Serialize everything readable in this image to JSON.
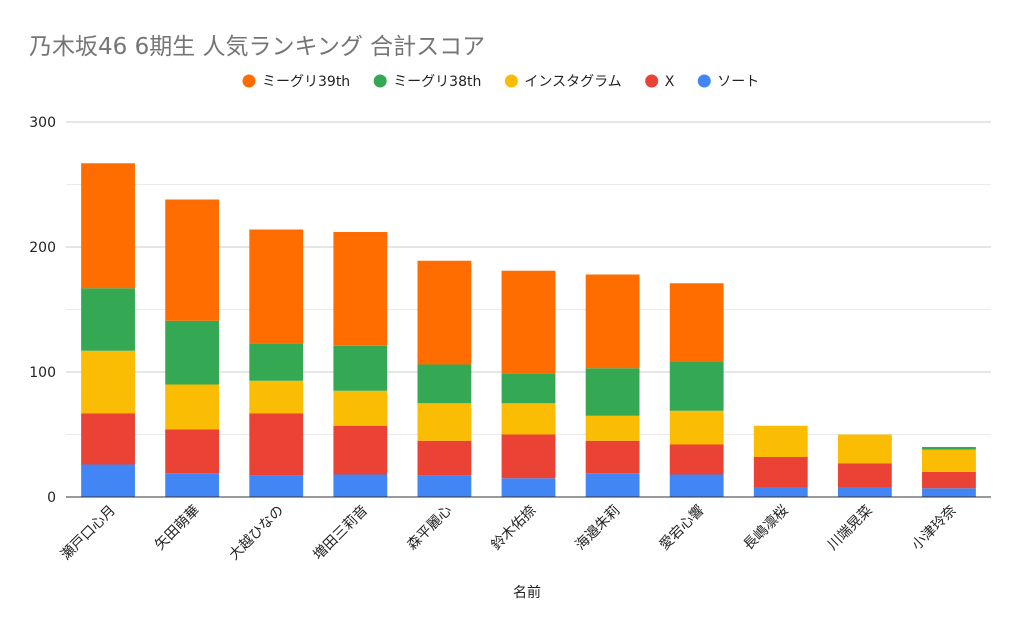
{
  "chart_data": {
    "type": "bar",
    "stacked": true,
    "title": "乃木坂46 6期生 人気ランキング 合計スコア",
    "xlabel": "名前",
    "ylabel": "",
    "ylim": [
      0,
      300
    ],
    "yticks": [
      0,
      100,
      200,
      300
    ],
    "grid": true,
    "legend_position": "top",
    "categories": [
      "瀬戸口心月",
      "矢田萌華",
      "大越ひなの",
      "増田三莉音",
      "森平麗心",
      "鈴木佑捺",
      "海邉朱莉",
      "愛宕心響",
      "長嶋凛桜",
      "川端晃菜",
      "小津玲奈"
    ],
    "series": [
      {
        "name": "ソート",
        "color": "#4285F4",
        "values": [
          26,
          19,
          17,
          18,
          17,
          15,
          19,
          18,
          8,
          8,
          7
        ]
      },
      {
        "name": "X",
        "color": "#EA4335",
        "values": [
          41,
          35,
          50,
          39,
          28,
          35,
          26,
          24,
          24,
          19,
          13
        ]
      },
      {
        "name": "インスタグラム",
        "color": "#FBBC04",
        "values": [
          50,
          36,
          26,
          28,
          30,
          25,
          20,
          27,
          25,
          23,
          18
        ]
      },
      {
        "name": "ミーグリ38th",
        "color": "#34A853",
        "values": [
          50,
          51,
          30,
          36,
          31,
          24,
          38,
          39,
          0,
          0,
          2
        ]
      },
      {
        "name": "ミーグリ39th",
        "color": "#FF6D01",
        "values": [
          100,
          97,
          91,
          91,
          83,
          82,
          75,
          63,
          0,
          0,
          0
        ]
      }
    ],
    "legend_order": [
      "ミーグリ39th",
      "ミーグリ38th",
      "インスタグラム",
      "X",
      "ソート"
    ]
  }
}
